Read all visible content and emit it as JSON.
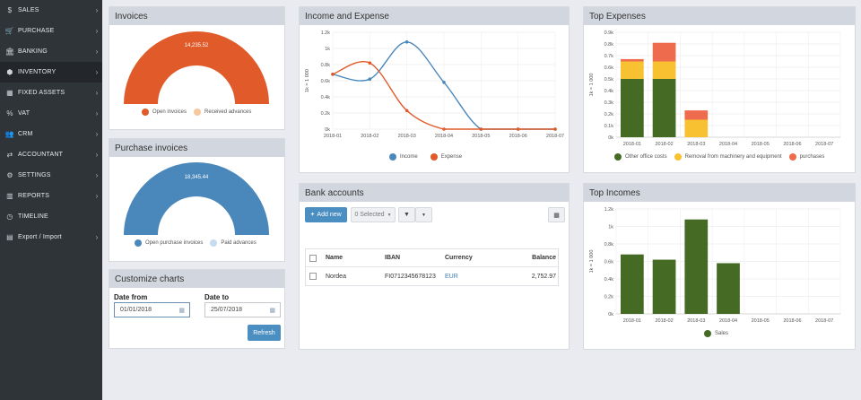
{
  "sidebar": {
    "items": [
      {
        "label": "SALES",
        "icon": "dollar-icon",
        "glyph": "$"
      },
      {
        "label": "PURCHASE",
        "icon": "cart-icon",
        "glyph": "🛒"
      },
      {
        "label": "BANKING",
        "icon": "bank-icon",
        "glyph": "🏛"
      },
      {
        "label": "INVENTORY",
        "icon": "cubes-icon",
        "glyph": "⬢"
      },
      {
        "label": "FIXED ASSETS",
        "icon": "building-icon",
        "glyph": "▦"
      },
      {
        "label": "VAT",
        "icon": "percent-icon",
        "glyph": "%"
      },
      {
        "label": "CRM",
        "icon": "users-icon",
        "glyph": "👥"
      },
      {
        "label": "ACCOUNTANT",
        "icon": "shuffle-icon",
        "glyph": "⇄"
      },
      {
        "label": "SETTINGS",
        "icon": "gear-icon",
        "glyph": "⚙"
      },
      {
        "label": "REPORTS",
        "icon": "bar-chart-icon",
        "glyph": "▥"
      },
      {
        "label": "TIMELINE",
        "icon": "clock-icon",
        "glyph": "◷"
      },
      {
        "label": "Export / Import",
        "icon": "file-icon",
        "glyph": "▤"
      }
    ],
    "chevron": "›",
    "active_index": 3
  },
  "invoices": {
    "title": "Invoices",
    "value_label": "14,235.52",
    "legend": [
      {
        "label": "Open invoices",
        "color": "#e05a2a"
      },
      {
        "label": "Received advances",
        "color": "#f7c89b"
      }
    ]
  },
  "purchase_invoices": {
    "title": "Purchase invoices",
    "value_label": "18,345.44",
    "legend": [
      {
        "label": "Open purchase invoices",
        "color": "#4a88bb"
      },
      {
        "label": "Paid advances",
        "color": "#c6dbef"
      }
    ]
  },
  "customize": {
    "title": "Customize charts",
    "date_from_label": "Date from",
    "date_from_value": "01/01/2018",
    "date_to_label": "Date to",
    "date_to_value": "25/07/2018",
    "refresh_label": "Refresh"
  },
  "income_expense": {
    "title": "Income and Expense",
    "ylabel": "1k = 1 000",
    "legend": [
      {
        "label": "Income",
        "color": "#4a88bb"
      },
      {
        "label": "Expense",
        "color": "#e05a2a"
      }
    ]
  },
  "bank_accounts": {
    "title": "Bank accounts",
    "add_new_label": "Add new",
    "selected_label": "0 Selected",
    "columns": [
      "Name",
      "IBAN",
      "Currency",
      "Balance"
    ],
    "rows": [
      {
        "name": "Nordea",
        "iban": "FI0712345678123",
        "currency": "EUR",
        "balance": "2,752.97"
      }
    ]
  },
  "top_expenses": {
    "title": "Top Expenses",
    "ylabel": "1k = 1 000",
    "legend": [
      {
        "label": "Other office costs",
        "color": "#446a23"
      },
      {
        "label": "Removal from machinery and equipment",
        "color": "#f7c132"
      },
      {
        "label": "purchases",
        "color": "#ef6b4e"
      }
    ]
  },
  "top_incomes": {
    "title": "Top Incomes",
    "ylabel": "1k = 1 000",
    "legend": [
      {
        "label": "Sales",
        "color": "#446a23"
      }
    ]
  },
  "chart_data": [
    {
      "type": "line",
      "title": "Income and Expense",
      "ylabel": "1k = 1 000",
      "categories": [
        "2018-01",
        "2018-02",
        "2018-03",
        "2018-04",
        "2018-05",
        "2018-06",
        "2018-07"
      ],
      "ylim": [
        0,
        1200
      ],
      "yticks": [
        "0k",
        "0.2k",
        "0.4k",
        "0.6k",
        "0.8k",
        "1k",
        "1.2k"
      ],
      "series": [
        {
          "name": "Income",
          "color": "#4a88bb",
          "values": [
            680,
            620,
            1080,
            580,
            0,
            0,
            0
          ]
        },
        {
          "name": "Expense",
          "color": "#e05a2a",
          "values": [
            680,
            820,
            230,
            0,
            0,
            0,
            0
          ]
        }
      ]
    },
    {
      "type": "bar",
      "title": "Top Expenses",
      "stacked": true,
      "ylabel": "1k = 1 000",
      "categories": [
        "2018-01",
        "2018-02",
        "2018-03",
        "2018-04",
        "2018-05",
        "2018-06",
        "2018-07"
      ],
      "ylim": [
        0,
        900
      ],
      "yticks": [
        "0k",
        "0.1k",
        "0.2k",
        "0.3k",
        "0.4k",
        "0.5k",
        "0.6k",
        "0.7k",
        "0.8k",
        "0.9k"
      ],
      "series": [
        {
          "name": "Other office costs",
          "color": "#446a23",
          "values": [
            500,
            500,
            0,
            0,
            0,
            0,
            0
          ]
        },
        {
          "name": "Removal from machinery and equipment",
          "color": "#f7c132",
          "values": [
            150,
            150,
            150,
            0,
            0,
            0,
            0
          ]
        },
        {
          "name": "purchases",
          "color": "#ef6b4e",
          "values": [
            20,
            160,
            80,
            0,
            0,
            0,
            0
          ]
        }
      ]
    },
    {
      "type": "bar",
      "title": "Top Incomes",
      "ylabel": "1k = 1 000",
      "categories": [
        "2018-01",
        "2018-02",
        "2018-03",
        "2018-04",
        "2018-05",
        "2018-06",
        "2018-07"
      ],
      "ylim": [
        0,
        1200
      ],
      "yticks": [
        "0k",
        "0.2k",
        "0.4k",
        "0.6k",
        "0.8k",
        "1k",
        "1.2k"
      ],
      "series": [
        {
          "name": "Sales",
          "color": "#446a23",
          "values": [
            680,
            620,
            1080,
            580,
            0,
            0,
            0
          ]
        }
      ]
    },
    {
      "type": "pie",
      "title": "Invoices",
      "series": [
        {
          "name": "Open invoices",
          "color": "#e05a2a",
          "values": [
            14235.52
          ]
        },
        {
          "name": "Received advances",
          "color": "#f7c89b",
          "values": [
            0
          ]
        }
      ]
    },
    {
      "type": "pie",
      "title": "Purchase invoices",
      "series": [
        {
          "name": "Open purchase invoices",
          "color": "#4a88bb",
          "values": [
            18345.44
          ]
        },
        {
          "name": "Paid advances",
          "color": "#c6dbef",
          "values": [
            0
          ]
        }
      ]
    }
  ]
}
